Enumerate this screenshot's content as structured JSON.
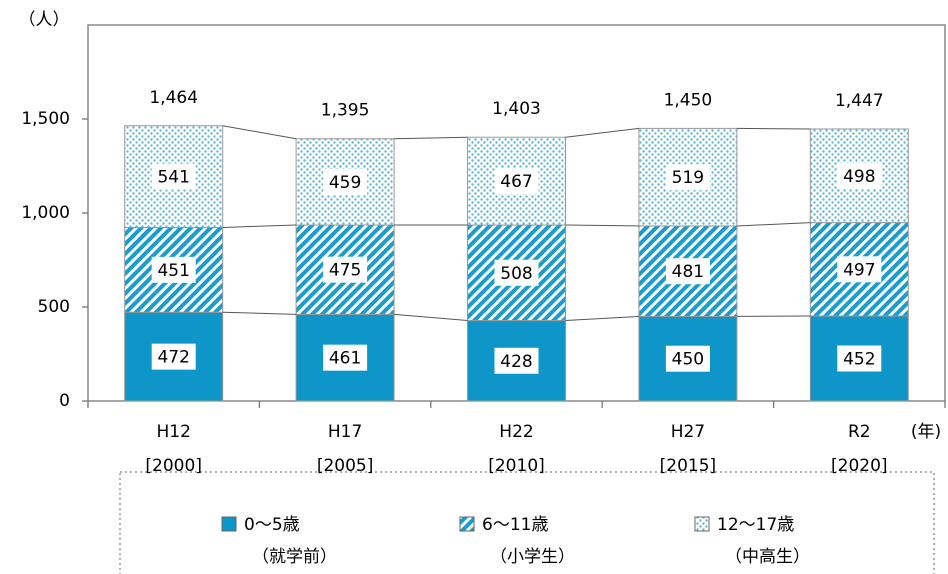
{
  "chart_data": {
    "type": "stacked_bar",
    "y_unit_label": "（人）",
    "x_unit_label": "(年)",
    "categories": [
      "H12",
      "H17",
      "H22",
      "H27",
      "R2"
    ],
    "category_years": [
      "[2000]",
      "[2005]",
      "[2010]",
      "[2015]",
      "[2020]"
    ],
    "series": [
      {
        "name": "0～5歳",
        "sublabel": "（就学前）",
        "color": "#0e96c8",
        "pattern": "solid",
        "values": [
          472,
          461,
          428,
          450,
          452
        ]
      },
      {
        "name": "6～11歳",
        "sublabel": "（小学生）",
        "color": "#1a9ccc",
        "pattern": "diagonal",
        "values": [
          451,
          475,
          508,
          481,
          497
        ]
      },
      {
        "name": "12～17歳",
        "sublabel": "（中高生）",
        "color": "#5ab8de",
        "pattern": "dots",
        "values": [
          541,
          459,
          467,
          519,
          498
        ]
      }
    ],
    "totals": [
      1464,
      1395,
      1403,
      1450,
      1447
    ],
    "total_labels": [
      "1,464",
      "1,395",
      "1,403",
      "1,450",
      "1,447"
    ],
    "ylim": [
      0,
      2000
    ],
    "yticks": [
      0,
      500,
      {
        "value": 1000,
        "label": "1,000"
      },
      {
        "value": 1500,
        "label": "1,500"
      }
    ],
    "grid": false,
    "legend": "bottom"
  }
}
